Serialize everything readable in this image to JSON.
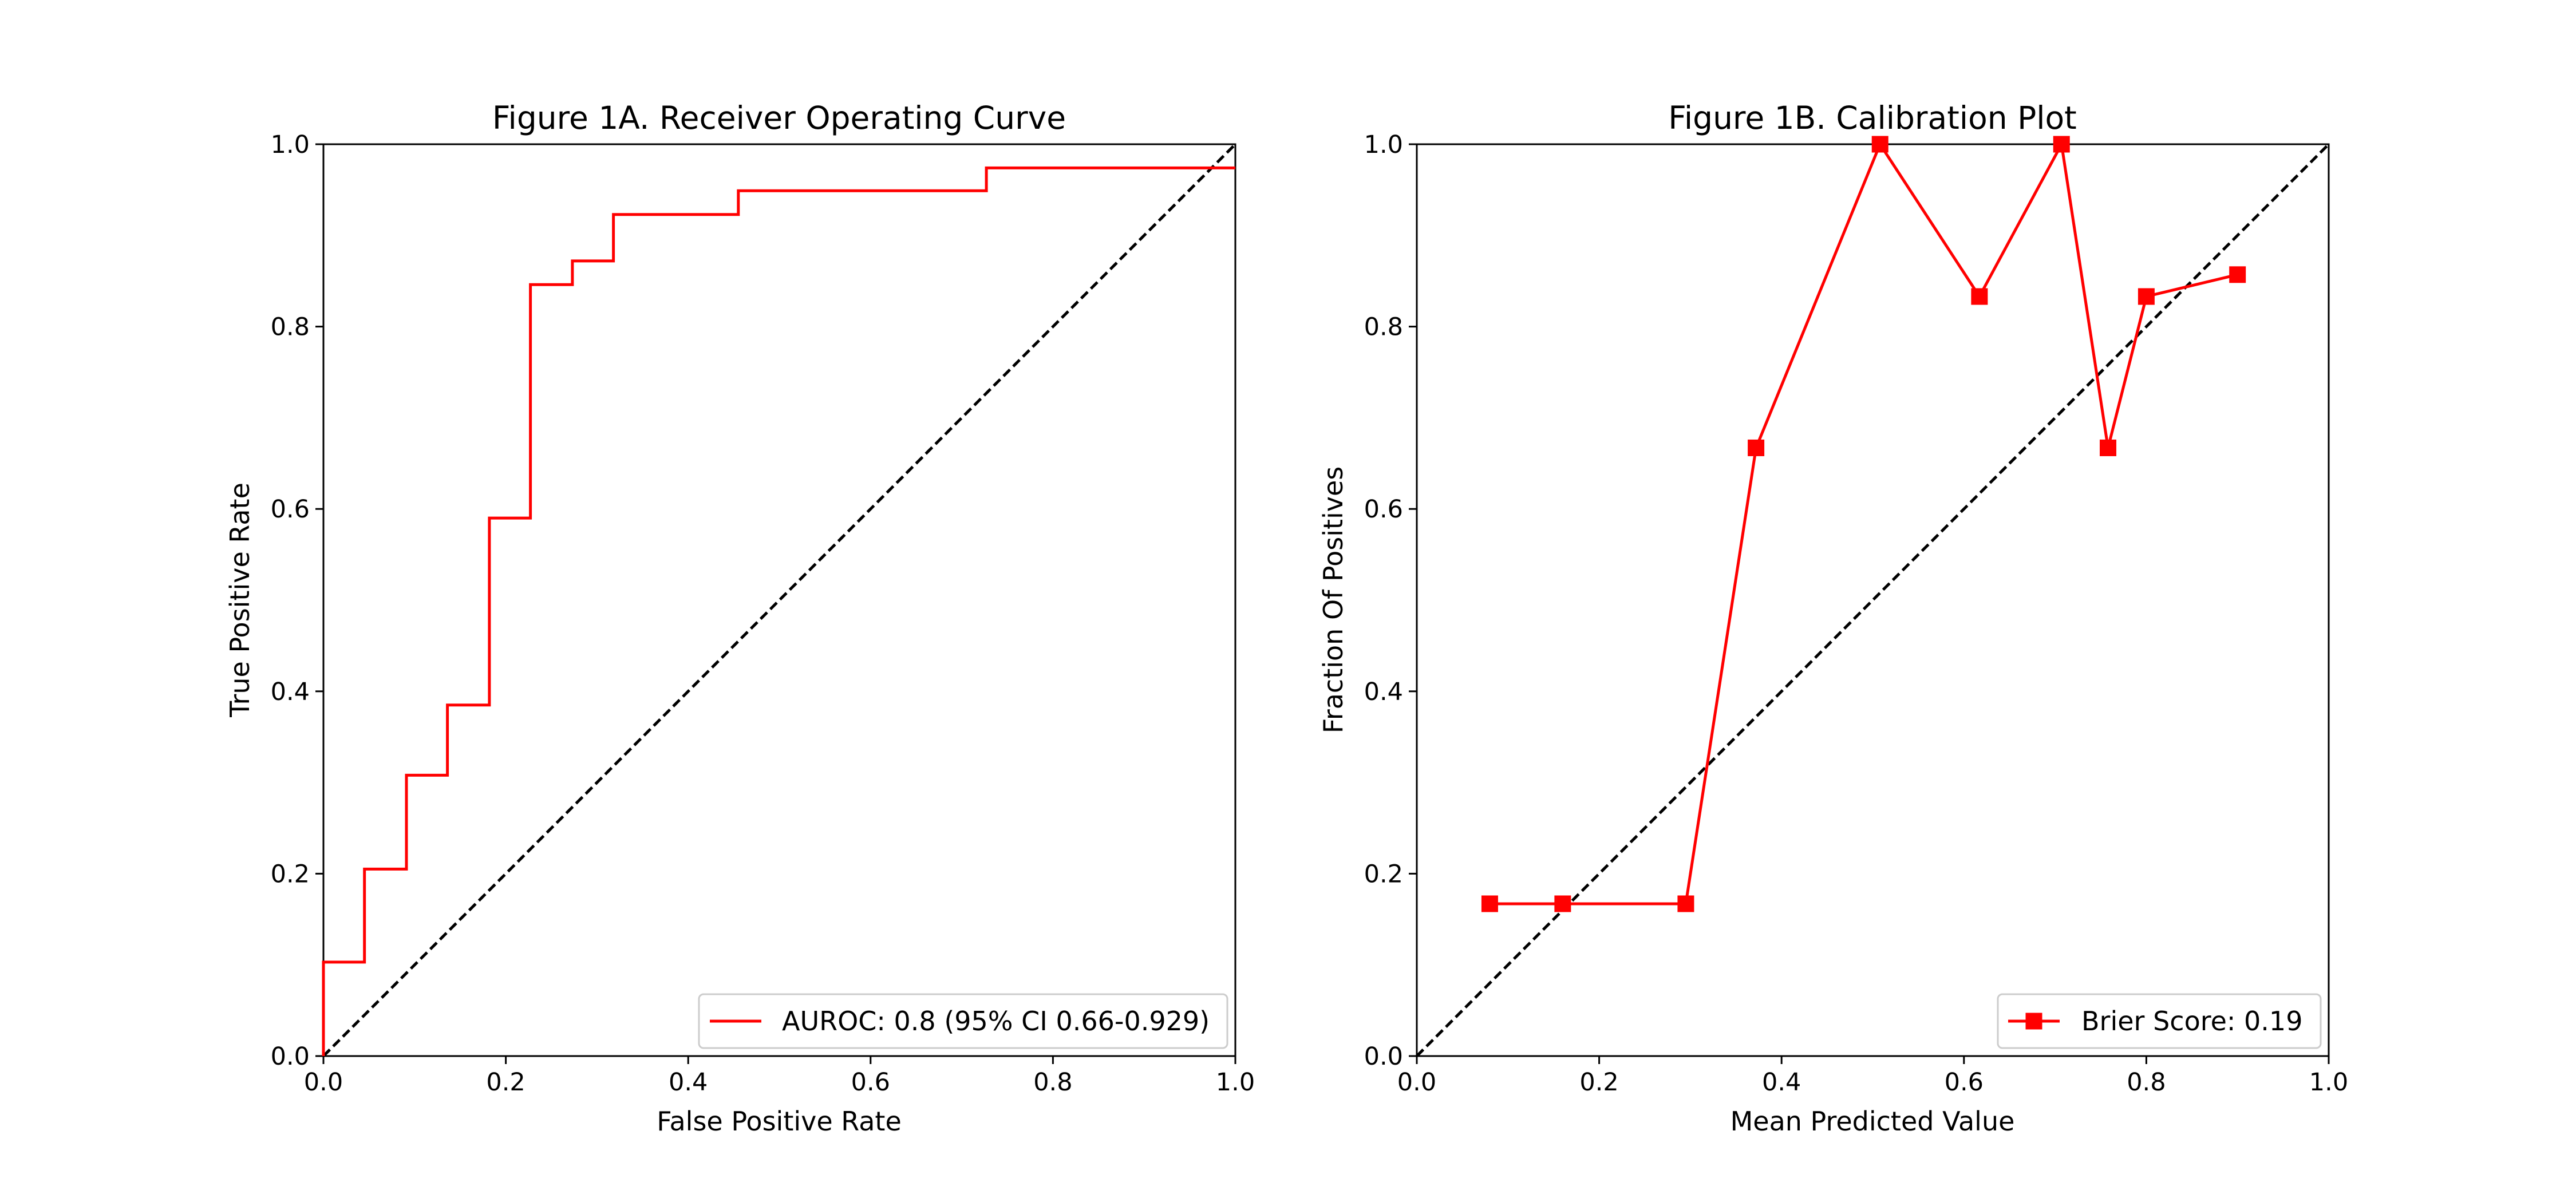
{
  "chart_data": [
    {
      "type": "line",
      "title": "Figure 1A. Receiver Operating Curve",
      "xlabel": "False Positive Rate",
      "ylabel": "True Positive Rate",
      "xlim": [
        0,
        1
      ],
      "ylim": [
        0,
        1
      ],
      "xticks": [
        "0.0",
        "0.2",
        "0.4",
        "0.6",
        "0.8",
        "1.0"
      ],
      "yticks": [
        "0.0",
        "0.2",
        "0.4",
        "0.6",
        "0.8",
        "1.0"
      ],
      "grid": false,
      "legend_position": "lower-right",
      "reference_line": "diagonal-dashed",
      "series": [
        {
          "name": "AUROC: 0.8 (95% CI 0.66-0.929)",
          "color": "#ff0000",
          "marker": "none",
          "step": true,
          "x": [
            0.0,
            0.0,
            0.045,
            0.045,
            0.091,
            0.091,
            0.136,
            0.136,
            0.182,
            0.182,
            0.227,
            0.227,
            0.273,
            0.273,
            0.318,
            0.318,
            0.455,
            0.455,
            0.727,
            0.727,
            1.0
          ],
          "y": [
            0.0,
            0.103,
            0.103,
            0.205,
            0.205,
            0.308,
            0.308,
            0.385,
            0.385,
            0.59,
            0.59,
            0.846,
            0.846,
            0.872,
            0.872,
            0.923,
            0.923,
            0.949,
            0.949,
            0.974,
            0.974
          ]
        }
      ]
    },
    {
      "type": "line",
      "title": "Figure 1B. Calibration Plot",
      "xlabel": "Mean Predicted Value",
      "ylabel": "Fraction Of Positives",
      "xlim": [
        0,
        1
      ],
      "ylim": [
        0,
        1
      ],
      "xticks": [
        "0.0",
        "0.2",
        "0.4",
        "0.6",
        "0.8",
        "1.0"
      ],
      "yticks": [
        "0.0",
        "0.2",
        "0.4",
        "0.6",
        "0.8",
        "1.0"
      ],
      "grid": false,
      "legend_position": "lower-right",
      "reference_line": "diagonal-dashed",
      "series": [
        {
          "name": "Brier Score: 0.19",
          "color": "#ff0000",
          "marker": "square",
          "step": false,
          "x": [
            0.08,
            0.16,
            0.295,
            0.372,
            0.508,
            0.617,
            0.707,
            0.758,
            0.8,
            0.9
          ],
          "y": [
            0.167,
            0.167,
            0.167,
            0.667,
            1.0,
            0.833,
            1.0,
            0.667,
            0.833,
            0.857
          ]
        }
      ]
    }
  ]
}
